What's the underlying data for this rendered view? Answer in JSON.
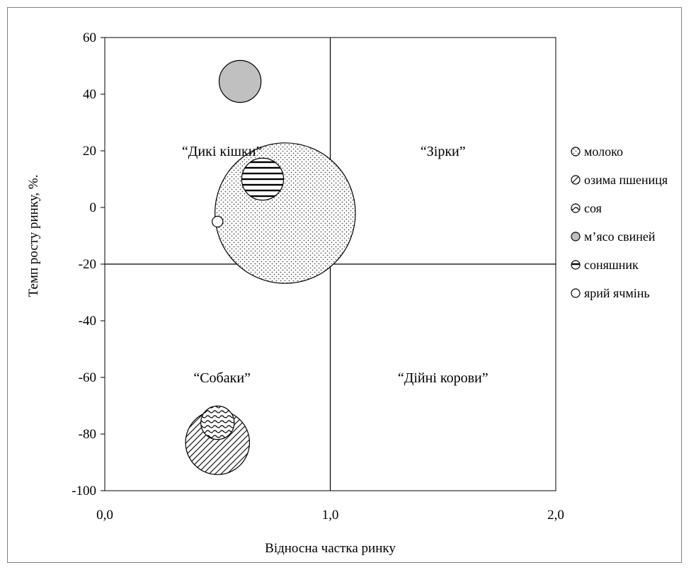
{
  "chart_data": {
    "type": "bubble",
    "title": "",
    "xlabel": "Відносна частка ринку",
    "ylabel": "Темп росту ринку, %.",
    "xlim": [
      0,
      2
    ],
    "ylim": [
      -100,
      60
    ],
    "x_ticks": [
      {
        "value": 0,
        "label": "0,0"
      },
      {
        "value": 1,
        "label": "1,0"
      },
      {
        "value": 2,
        "label": "2,0"
      }
    ],
    "y_ticks": [
      {
        "value": 60,
        "label": "60"
      },
      {
        "value": 40,
        "label": "40"
      },
      {
        "value": 20,
        "label": "20"
      },
      {
        "value": 0,
        "label": "0"
      },
      {
        "value": -20,
        "label": "-20"
      },
      {
        "value": -40,
        "label": "-40"
      },
      {
        "value": -60,
        "label": "-60"
      },
      {
        "value": -80,
        "label": "-80"
      },
      {
        "value": -100,
        "label": "-100"
      }
    ],
    "divider_x": 1.0,
    "divider_y": -20,
    "grid": false,
    "legend_position": "right",
    "quadrant_labels": [
      {
        "text": "“Дикі кішки”",
        "x": 0.52,
        "y": 20
      },
      {
        "text": "“Зірки”",
        "x": 1.5,
        "y": 20
      },
      {
        "text": "“Собаки”",
        "x": 0.52,
        "y": -60
      },
      {
        "text": "“Дійні корови”",
        "x": 1.5,
        "y": -60
      }
    ],
    "series": [
      {
        "name": "молоко",
        "x": 0.8,
        "y": -2,
        "size": 24.8,
        "pattern": "dots"
      },
      {
        "name": "озима пшениця",
        "x": 0.5,
        "y": -83,
        "size": 11.3,
        "pattern": "diagonal"
      },
      {
        "name": "соя",
        "x": 0.5,
        "y": -76,
        "size": 5.9,
        "pattern": "waves"
      },
      {
        "name": "м’ясо свиней",
        "x": 0.6,
        "y": 44.5,
        "size": 7.4,
        "pattern": "gray"
      },
      {
        "name": "соняшник",
        "x": 0.7,
        "y": 10,
        "size": 7.4,
        "pattern": "horizontal"
      },
      {
        "name": "ярий ячмінь",
        "x": 0.5,
        "y": -5,
        "size": 1.9,
        "pattern": "white"
      }
    ]
  }
}
